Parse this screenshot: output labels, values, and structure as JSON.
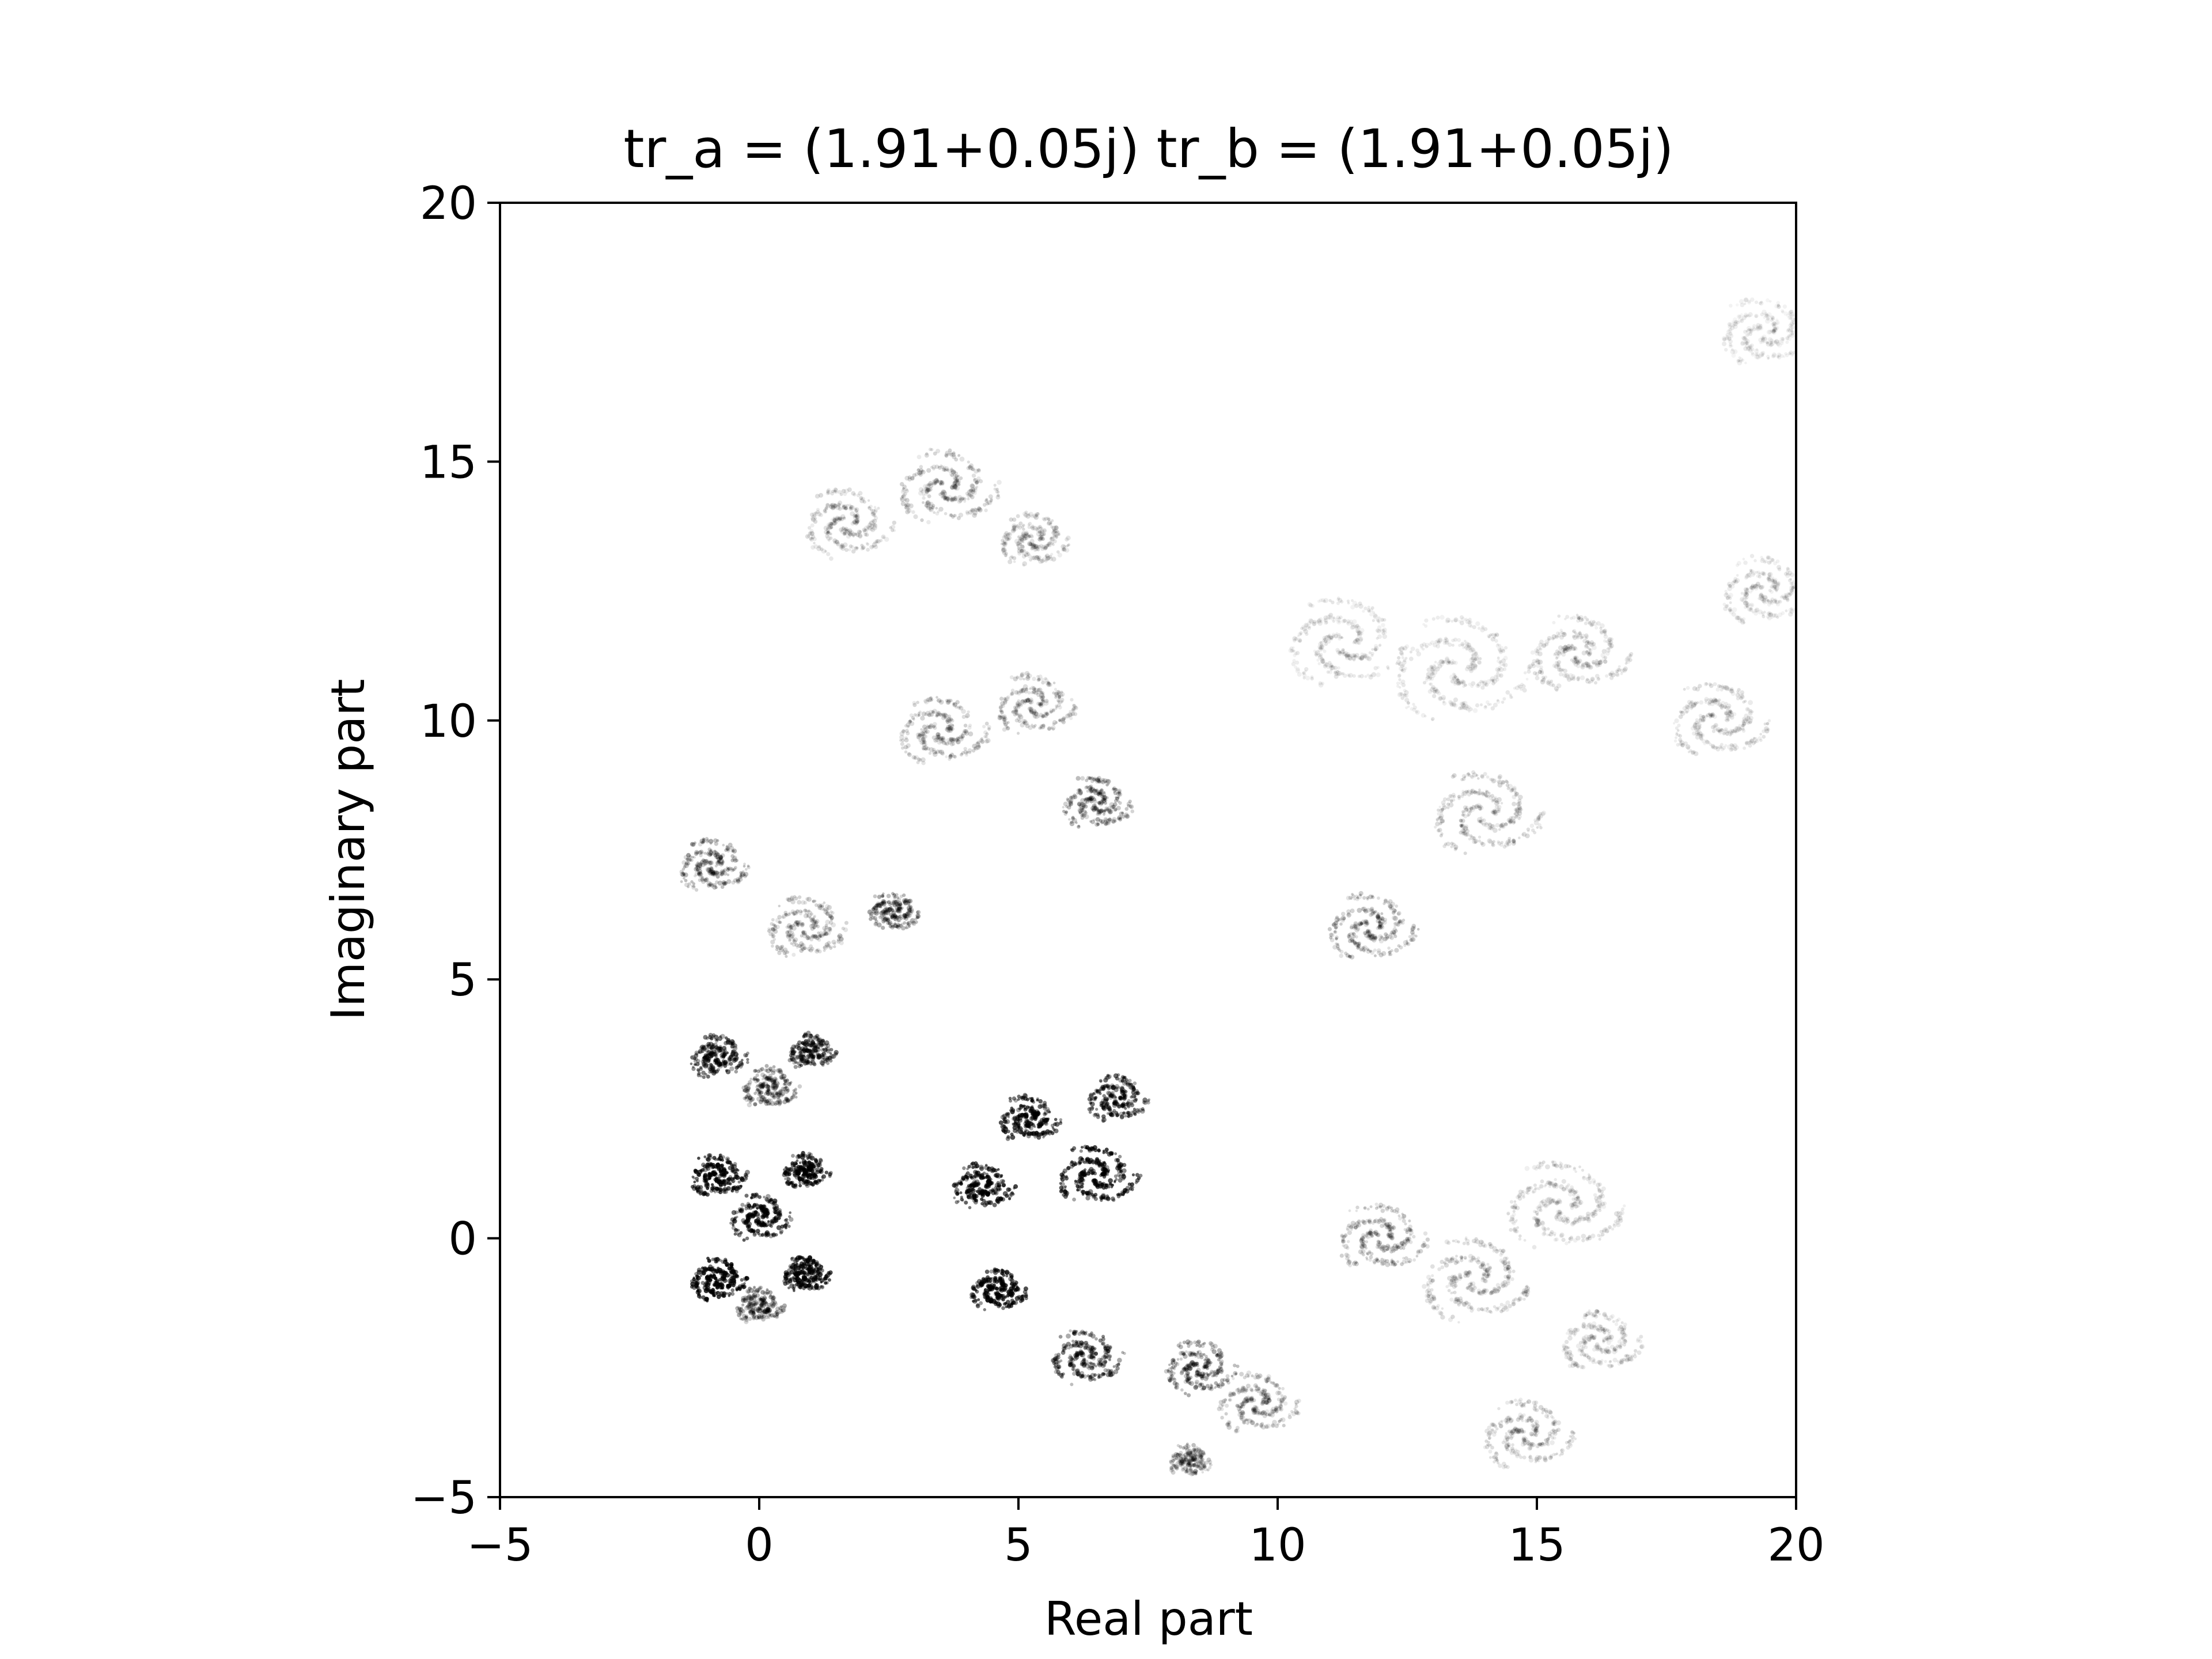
{
  "chart_data": {
    "type": "scatter",
    "title": "tr_a = (1.91+0.05j) tr_b = (1.91+0.05j)",
    "xlabel": "Real part",
    "ylabel": "Imaginary part",
    "xlim": [
      -5,
      20
    ],
    "ylim": [
      -5,
      20
    ],
    "xticks": [
      -5,
      0,
      5,
      10,
      15,
      20
    ],
    "yticks": [
      -5,
      0,
      5,
      10,
      15,
      20
    ],
    "xtick_labels": [
      "−5",
      "0",
      "5",
      "10",
      "15",
      "20"
    ],
    "ytick_labels": [
      "−5",
      "0",
      "5",
      "10",
      "15",
      "20"
    ],
    "grid": false,
    "point_color": "#000000",
    "series": [
      {
        "clusters": [
          {
            "x": -0.8,
            "y": -0.8,
            "spread": 0.55,
            "shade": 0.85
          },
          {
            "x": 0.9,
            "y": -0.7,
            "spread": 0.45,
            "shade": 0.8
          },
          {
            "x": 0.0,
            "y": -1.3,
            "spread": 0.45,
            "shade": 0.35
          },
          {
            "x": -0.8,
            "y": 1.2,
            "spread": 0.55,
            "shade": 0.8
          },
          {
            "x": 0.9,
            "y": 1.3,
            "spread": 0.45,
            "shade": 0.75
          },
          {
            "x": 0.0,
            "y": 0.4,
            "spread": 0.6,
            "shade": 0.7
          },
          {
            "x": -0.8,
            "y": 3.5,
            "spread": 0.55,
            "shade": 0.6
          },
          {
            "x": 1.0,
            "y": 3.6,
            "spread": 0.45,
            "shade": 0.55
          },
          {
            "x": 0.2,
            "y": 2.9,
            "spread": 0.55,
            "shade": 0.35
          },
          {
            "x": -0.9,
            "y": 7.2,
            "spread": 0.7,
            "shade": 0.28
          },
          {
            "x": 0.9,
            "y": 6.0,
            "spread": 0.8,
            "shade": 0.2
          },
          {
            "x": 2.6,
            "y": 6.3,
            "spread": 0.5,
            "shade": 0.35
          },
          {
            "x": 4.3,
            "y": 1.0,
            "spread": 0.6,
            "shade": 0.75
          },
          {
            "x": 4.6,
            "y": -1.0,
            "spread": 0.55,
            "shade": 0.8
          },
          {
            "x": 5.2,
            "y": 2.3,
            "spread": 0.6,
            "shade": 0.7
          },
          {
            "x": 6.5,
            "y": 1.2,
            "spread": 0.8,
            "shade": 0.75
          },
          {
            "x": 6.9,
            "y": 2.7,
            "spread": 0.6,
            "shade": 0.6
          },
          {
            "x": 6.3,
            "y": -2.3,
            "spread": 0.7,
            "shade": 0.5
          },
          {
            "x": 8.5,
            "y": -2.5,
            "spread": 0.7,
            "shade": 0.35
          },
          {
            "x": 9.6,
            "y": -3.2,
            "spread": 0.8,
            "shade": 0.2
          },
          {
            "x": 8.3,
            "y": -4.3,
            "spread": 0.4,
            "shade": 0.25
          },
          {
            "x": 3.5,
            "y": 9.8,
            "spread": 0.9,
            "shade": 0.18
          },
          {
            "x": 5.3,
            "y": 10.3,
            "spread": 0.8,
            "shade": 0.18
          },
          {
            "x": 6.5,
            "y": 8.4,
            "spread": 0.7,
            "shade": 0.3
          },
          {
            "x": 1.7,
            "y": 13.8,
            "spread": 0.9,
            "shade": 0.15
          },
          {
            "x": 3.6,
            "y": 14.5,
            "spread": 1.0,
            "shade": 0.18
          },
          {
            "x": 5.3,
            "y": 13.5,
            "spread": 0.7,
            "shade": 0.15
          },
          {
            "x": 11.8,
            "y": 6.0,
            "spread": 0.9,
            "shade": 0.22
          },
          {
            "x": 14.0,
            "y": 8.2,
            "spread": 1.1,
            "shade": 0.15
          },
          {
            "x": 13.5,
            "y": 11.0,
            "spread": 1.4,
            "shade": 0.1
          },
          {
            "x": 11.3,
            "y": 11.5,
            "spread": 1.2,
            "shade": 0.1
          },
          {
            "x": 15.8,
            "y": 11.3,
            "spread": 1.0,
            "shade": 0.12
          },
          {
            "x": 18.5,
            "y": 10.0,
            "spread": 1.0,
            "shade": 0.12
          },
          {
            "x": 19.4,
            "y": 12.5,
            "spread": 0.9,
            "shade": 0.1
          },
          {
            "x": 19.4,
            "y": 17.5,
            "spread": 0.9,
            "shade": 0.08
          },
          {
            "x": 12.0,
            "y": 0.0,
            "spread": 0.9,
            "shade": 0.2
          },
          {
            "x": 13.8,
            "y": -0.8,
            "spread": 1.1,
            "shade": 0.15
          },
          {
            "x": 15.5,
            "y": 0.6,
            "spread": 1.2,
            "shade": 0.12
          },
          {
            "x": 16.2,
            "y": -2.0,
            "spread": 0.8,
            "shade": 0.12
          },
          {
            "x": 14.8,
            "y": -3.8,
            "spread": 0.9,
            "shade": 0.15
          }
        ]
      }
    ]
  }
}
